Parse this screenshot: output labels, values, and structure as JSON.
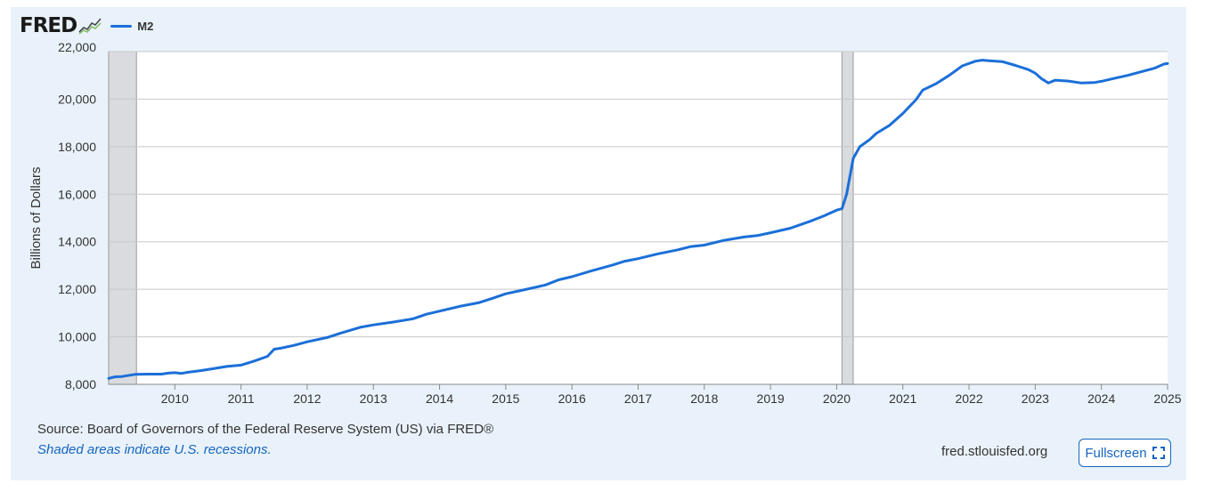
{
  "header": {
    "logo_text": "FRED",
    "logo_icon": "fred-chart-icon",
    "legend_label": "M2"
  },
  "colors": {
    "series": "#1b6fd8",
    "background": "#e9f2fa",
    "recession": "#d9dbde",
    "grid": "#c8c8c8",
    "accent": "#1565c0"
  },
  "footer": {
    "source": "Source: Board of Governors of the Federal Reserve System (US) via FRED®",
    "recession_note": "Shaded areas indicate U.S. recessions.",
    "site": "fred.stlouisfed.org",
    "fullscreen_label": "Fullscreen",
    "fullscreen_icon": "expand-icon"
  },
  "chart_data": {
    "type": "line",
    "title": "",
    "xlabel": "",
    "ylabel": "Billions of Dollars",
    "xlim": [
      2009.0,
      2025.0
    ],
    "ylim": [
      8000,
      22000
    ],
    "grid": true,
    "legend": "top-left",
    "y_ticks": [
      8000,
      10000,
      12000,
      14000,
      16000,
      18000,
      20000,
      22000
    ],
    "y_tick_labels": [
      "8,000",
      "10,000",
      "12,000",
      "14,000",
      "16,000",
      "18,000",
      "20,000",
      "22,000"
    ],
    "x_ticks": [
      2010,
      2011,
      2012,
      2013,
      2014,
      2015,
      2016,
      2017,
      2018,
      2019,
      2020,
      2021,
      2022,
      2023,
      2024,
      2025
    ],
    "x_tick_labels": [
      "2010",
      "2011",
      "2012",
      "2013",
      "2014",
      "2015",
      "2016",
      "2017",
      "2018",
      "2019",
      "2020",
      "2021",
      "2022",
      "2023",
      "2024",
      "2025"
    ],
    "recessions": [
      [
        2009.0,
        2009.42
      ],
      [
        2020.08,
        2020.25
      ]
    ],
    "series": [
      {
        "name": "M2",
        "x": [
          2009.0,
          2009.1,
          2009.2,
          2009.4,
          2009.6,
          2009.8,
          2009.9,
          2010.0,
          2010.1,
          2010.2,
          2010.4,
          2010.6,
          2010.8,
          2011.0,
          2011.2,
          2011.4,
          2011.5,
          2011.6,
          2011.8,
          2012.0,
          2012.3,
          2012.5,
          2012.8,
          2013.0,
          2013.3,
          2013.6,
          2013.8,
          2014.0,
          2014.3,
          2014.6,
          2014.8,
          2015.0,
          2015.3,
          2015.6,
          2015.8,
          2016.0,
          2016.3,
          2016.6,
          2016.8,
          2017.0,
          2017.3,
          2017.6,
          2017.8,
          2018.0,
          2018.3,
          2018.6,
          2018.8,
          2019.0,
          2019.3,
          2019.6,
          2019.8,
          2020.0,
          2020.08,
          2020.15,
          2020.25,
          2020.35,
          2020.5,
          2020.6,
          2020.8,
          2021.0,
          2021.2,
          2021.3,
          2021.5,
          2021.7,
          2021.9,
          2022.1,
          2022.2,
          2022.3,
          2022.5,
          2022.7,
          2022.9,
          2023.0,
          2023.1,
          2023.2,
          2023.3,
          2023.5,
          2023.7,
          2023.9,
          2024.0,
          2024.2,
          2024.4,
          2024.6,
          2024.8,
          2024.95,
          2025.0
        ],
        "values": [
          8250,
          8320,
          8330,
          8420,
          8430,
          8430,
          8470,
          8490,
          8460,
          8510,
          8580,
          8670,
          8760,
          8810,
          8980,
          9180,
          9480,
          9520,
          9640,
          9790,
          9970,
          10150,
          10400,
          10500,
          10620,
          10760,
          10950,
          11080,
          11280,
          11440,
          11620,
          11810,
          11990,
          12180,
          12400,
          12530,
          12780,
          13010,
          13180,
          13290,
          13490,
          13660,
          13800,
          13860,
          14060,
          14200,
          14260,
          14380,
          14570,
          14860,
          15080,
          15330,
          15390,
          16000,
          17500,
          18000,
          18300,
          18560,
          18900,
          19400,
          19980,
          20380,
          20650,
          21000,
          21400,
          21600,
          21640,
          21620,
          21580,
          21420,
          21240,
          21090,
          20850,
          20680,
          20800,
          20760,
          20680,
          20700,
          20750,
          20880,
          21000,
          21150,
          21300,
          21480,
          21500
        ]
      }
    ]
  }
}
